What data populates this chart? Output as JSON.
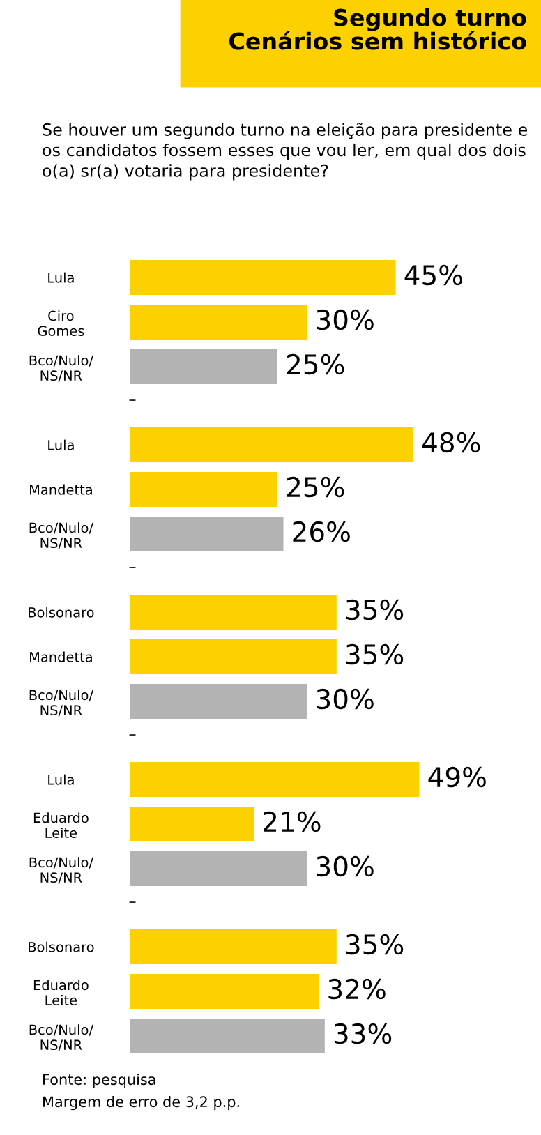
{
  "chart_data": [
    {
      "type": "bar",
      "orientation": "horizontal",
      "title": "Segundo turno\nCenários sem histórico",
      "subtitle": "Se houver um segundo turno na eleição para presidente e os candidatos fossem esses que vou ler, em qual dos dois o(a) sr(a) votaria para presidente?",
      "categories": [
        "Lula",
        "Ciro\nGomes",
        "Bco/Nulo/\nNS/NR"
      ],
      "values": [
        45,
        30,
        25
      ],
      "value_labels": [
        "45%",
        "30%",
        "25%"
      ],
      "colors": [
        "#fdd000",
        "#fdd000",
        "#b3b3b3"
      ],
      "tick_labels": "y",
      "annotations": [
        "–"
      ]
    },
    {
      "type": "bar",
      "orientation": "horizontal",
      "categories": [
        "Lula",
        "Mandetta",
        "Bco/Nulo/\nNS/NR"
      ],
      "values": [
        48,
        25,
        26
      ],
      "value_labels": [
        "48%",
        "25%",
        "26%"
      ],
      "colors": [
        "#fdd000",
        "#fdd000",
        "#b3b3b3"
      ],
      "tick_labels": "y",
      "annotations": [
        "–"
      ]
    },
    {
      "type": "bar",
      "orientation": "horizontal",
      "categories": [
        "Bolsonaro",
        "Mandetta",
        "Bco/Nulo/\nNS/NR"
      ],
      "values": [
        35,
        35,
        30
      ],
      "value_labels": [
        "35%",
        "35%",
        "30%"
      ],
      "colors": [
        "#fdd000",
        "#fdd000",
        "#b3b3b3"
      ],
      "tick_labels": "y",
      "annotations": [
        "–"
      ]
    },
    {
      "type": "bar",
      "orientation": "horizontal",
      "categories": [
        "Lula",
        "Eduardo\nLeite",
        "Bco/Nulo/\nNS/NR"
      ],
      "values": [
        49,
        21,
        30
      ],
      "value_labels": [
        "49%",
        "21%",
        "30%"
      ],
      "colors": [
        "#fdd000",
        "#fdd000",
        "#b3b3b3"
      ],
      "tick_labels": "y",
      "annotations": [
        "–"
      ]
    },
    {
      "type": "bar",
      "orientation": "horizontal",
      "categories": [
        "Bolsonaro",
        "Eduardo\nLeite",
        "Bco/Nulo/\nNS/NR"
      ],
      "values": [
        35,
        32,
        33
      ],
      "value_labels": [
        "35%",
        "32%",
        "33%"
      ],
      "colors": [
        "#fdd000",
        "#fdd000",
        "#b3b3b3"
      ],
      "tick_labels": "y",
      "annotations": [
        "Fonte: pesquisa",
        "Margem de erro de 3,2 p.p."
      ]
    }
  ]
}
